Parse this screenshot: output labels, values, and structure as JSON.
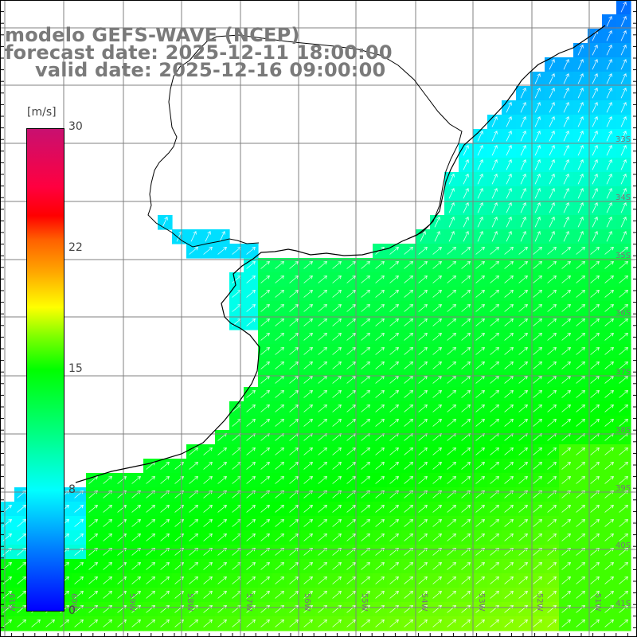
{
  "title": {
    "line1": "modelo GEFS-WAVE (NCEP)",
    "line2": "forecast date: 2025-12-11 18:00:00",
    "line3": "valid date: 2025-12-16 09:00:00"
  },
  "legend": {
    "unit": "[m/s]",
    "ticks": [
      "30",
      "22",
      "15",
      "8",
      "0"
    ]
  },
  "graticule": {
    "lat_labels": [
      "33S",
      "34S",
      "35S",
      "36S",
      "37S",
      "38S",
      "39S",
      "40S",
      "41S"
    ],
    "lon_labels": [
      "61W",
      "60W",
      "59W",
      "58W",
      "57W",
      "56W",
      "55W",
      "54W",
      "53W",
      "52W",
      "51W"
    ]
  },
  "colors": {
    "land": "#ffffff",
    "coast": "#000000",
    "grid": "#808080",
    "title": "#7a7a7a",
    "arrows": "#ffffff"
  },
  "field": {
    "variable": "wind speed",
    "units": "m/s",
    "range": [
      0,
      30
    ],
    "regional_values": {
      "northeast_coast": 6,
      "rio_de_la_plata": 7,
      "central_shelf": 12,
      "southern_open_sea": 15,
      "southeast_corner": 16
    },
    "arrow_direction": "toward northeast"
  }
}
